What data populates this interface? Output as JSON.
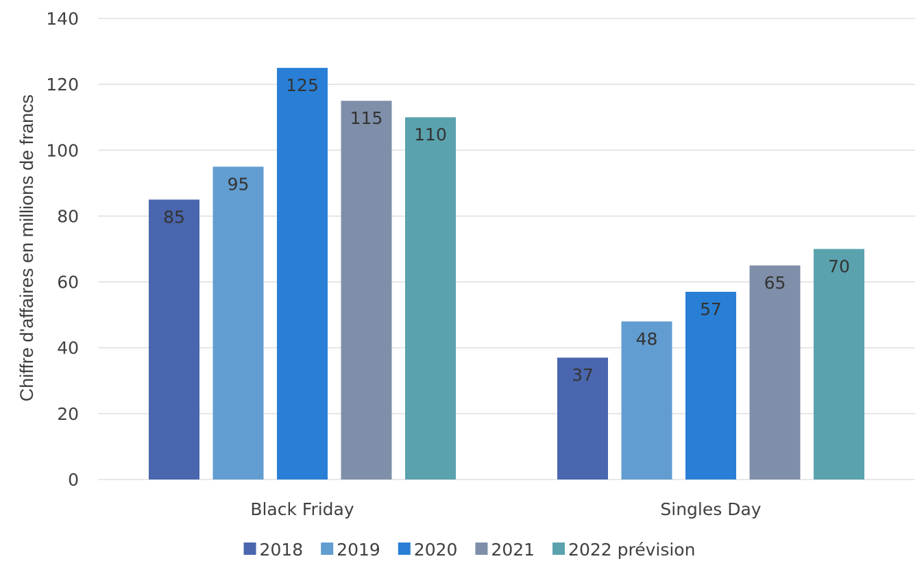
{
  "chart_data": {
    "type": "bar",
    "title": "",
    "xlabel": "",
    "ylabel": "Chiffre d'affaires en millions de francs",
    "ylim": [
      0,
      140
    ],
    "yticks": [
      0,
      20,
      40,
      60,
      80,
      100,
      120,
      140
    ],
    "grid": true,
    "legend_position": "bottom",
    "categories": [
      "Black Friday",
      "Singles Day"
    ],
    "series": [
      {
        "name": "2018",
        "color": "#4a66ae",
        "values": [
          85,
          37
        ]
      },
      {
        "name": "2019",
        "color": "#629dd1",
        "values": [
          95,
          48
        ]
      },
      {
        "name": "2020",
        "color": "#297fd5",
        "values": [
          125,
          57
        ]
      },
      {
        "name": "2021",
        "color": "#7f8fa9",
        "values": [
          115,
          65
        ]
      },
      {
        "name": "2022 prévision",
        "color": "#5aa2ae",
        "values": [
          110,
          70
        ]
      }
    ]
  }
}
